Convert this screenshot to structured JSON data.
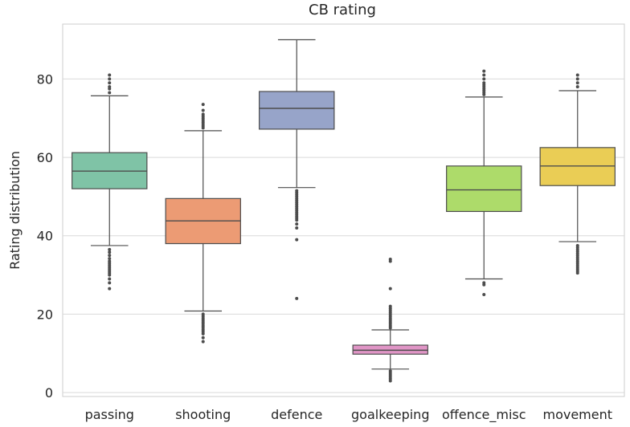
{
  "chart_data": {
    "type": "box",
    "title": "CB rating",
    "xlabel": "",
    "ylabel": "Rating distribution",
    "ylim": [
      -1,
      94
    ],
    "yticks": [
      0,
      20,
      40,
      60,
      80
    ],
    "grid": true,
    "categories": [
      "passing",
      "shooting",
      "defence",
      "goalkeeping",
      "offence_misc",
      "movement"
    ],
    "boxes": [
      {
        "name": "passing",
        "color": "#7fc3a6",
        "whisker_low": 37.5,
        "q1": 52,
        "median": 56.5,
        "q3": 61.2,
        "whisker_high": 75.7,
        "outliers": [
          36.5,
          35.8,
          35,
          34.2,
          33.5,
          33,
          32.5,
          32,
          31.5,
          31,
          30.5,
          30,
          29,
          28,
          26.5,
          76.5,
          77.5,
          78,
          79,
          80,
          81
        ]
      },
      {
        "name": "shooting",
        "color": "#ec9b74",
        "whisker_low": 20.8,
        "q1": 38,
        "median": 43.8,
        "q3": 49.5,
        "whisker_high": 66.8,
        "outliers": [
          20,
          19.5,
          19,
          18.5,
          18,
          17.5,
          17,
          16.5,
          16,
          15.5,
          15,
          14,
          13,
          67.5,
          68,
          68.5,
          69,
          69.5,
          70,
          70.5,
          71,
          72,
          73.5
        ]
      },
      {
        "name": "defence",
        "color": "#97a4c9",
        "whisker_low": 52.3,
        "q1": 67.2,
        "median": 72.5,
        "q3": 76.8,
        "whisker_high": 90,
        "outliers": [
          51.5,
          51,
          50.5,
          50,
          49.5,
          49,
          48.5,
          48,
          47.5,
          47,
          46.5,
          46,
          45.5,
          45,
          44.5,
          44,
          43,
          42,
          39,
          24
        ]
      },
      {
        "name": "goalkeeping",
        "color": "#e095c6",
        "whisker_low": 6,
        "q1": 9.8,
        "median": 10.8,
        "q3": 12.1,
        "whisker_high": 16,
        "outliers": [
          5.5,
          5,
          4.5,
          4,
          3.5,
          3,
          16.5,
          17,
          17.5,
          18,
          18.5,
          19,
          19.5,
          20,
          20.5,
          21,
          21.5,
          22,
          26.5,
          33.5,
          34
        ]
      },
      {
        "name": "offence_misc",
        "color": "#addb6a",
        "whisker_low": 29,
        "q1": 46.2,
        "median": 51.7,
        "q3": 57.8,
        "whisker_high": 75.4,
        "outliers": [
          28,
          27.5,
          25,
          76,
          76.5,
          77,
          77.5,
          78,
          78.5,
          79,
          80,
          81,
          82
        ]
      },
      {
        "name": "movement",
        "color": "#eacd55",
        "whisker_low": 38.5,
        "q1": 52.8,
        "median": 57.8,
        "q3": 62.5,
        "whisker_high": 77,
        "outliers": [
          37.5,
          37,
          36.5,
          36,
          35.5,
          35,
          34.5,
          34,
          33.5,
          33,
          32.5,
          32,
          31.5,
          31,
          30.5,
          78,
          79,
          80,
          81
        ]
      }
    ]
  }
}
